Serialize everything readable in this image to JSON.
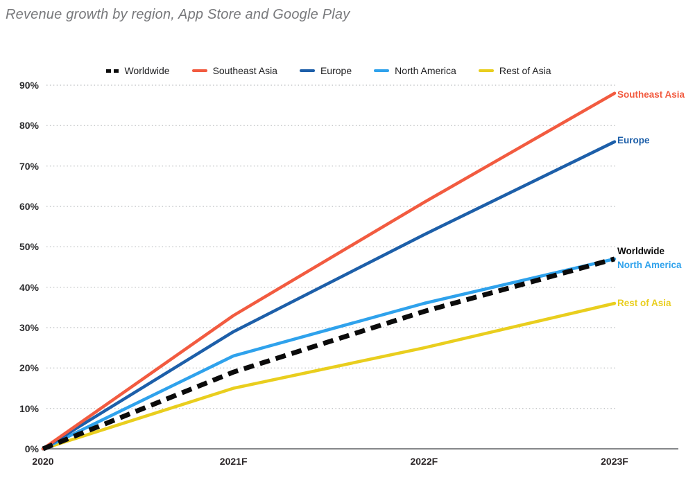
{
  "title": "Revenue growth by region, App Store and Google Play",
  "chart_data": {
    "type": "line",
    "title": "Revenue growth by region, App Store and Google Play",
    "categories": [
      "2020",
      "2021F",
      "2022F",
      "2023F"
    ],
    "series": [
      {
        "name": "Worldwide",
        "values": [
          0,
          19,
          34,
          47
        ],
        "color": "#0b0b0b",
        "dash": true
      },
      {
        "name": "Southeast Asia",
        "values": [
          0,
          33,
          61,
          88
        ],
        "color": "#F25B40",
        "dash": false
      },
      {
        "name": "Europe",
        "values": [
          0,
          29,
          53,
          76
        ],
        "color": "#1D5FA9",
        "dash": false
      },
      {
        "name": "North America",
        "values": [
          0,
          23,
          36,
          47
        ],
        "color": "#2FA2EC",
        "dash": false
      },
      {
        "name": "Rest of Asia",
        "values": [
          0,
          15,
          25,
          36
        ],
        "color": "#E9CE1E",
        "dash": false
      }
    ],
    "y_ticks": [
      "0%",
      "10%",
      "20%",
      "30%",
      "40%",
      "50%",
      "60%",
      "70%",
      "80%",
      "90%"
    ],
    "ylim": [
      0,
      90
    ],
    "xlabel": "",
    "ylabel": "",
    "grid": "horizontal-dotted",
    "legend_position": "top",
    "right_labels": [
      "Southeast Asia",
      "Europe",
      "Worldwide",
      "North America",
      "Rest of Asia"
    ]
  }
}
